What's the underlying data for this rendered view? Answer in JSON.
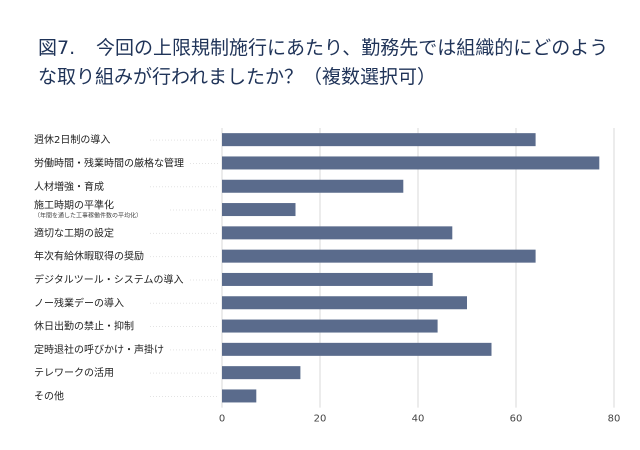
{
  "figure": {
    "label": "図7.",
    "title": "今回の上限規制施行にあたり、勤務先では組織的にどのような取り組みが行われましたか？（複数選択可）"
  },
  "colors": {
    "bar": "#5a6b8c",
    "grid": "#d9d9d9",
    "label": "#222222",
    "title": "#1f3358"
  },
  "chart_data": {
    "type": "bar",
    "orientation": "horizontal",
    "title": "今回の上限規制施行にあたり、勤務先では組織的にどのような取り組みが行われましたか？（複数選択可）",
    "xlabel": "",
    "ylabel": "",
    "xlim": [
      0,
      80
    ],
    "xticks": [
      "0",
      "20",
      "40",
      "60",
      "80"
    ],
    "grid": true,
    "categories": [
      {
        "label": "週休2日制の導入",
        "sub": ""
      },
      {
        "label": "労働時間・残業時間の厳格な管理",
        "sub": ""
      },
      {
        "label": "人材増強・育成",
        "sub": ""
      },
      {
        "label": "施工時期の平準化",
        "sub": "（年間を通した工事稼働件数の平均化）"
      },
      {
        "label": "適切な工期の設定",
        "sub": ""
      },
      {
        "label": "年次有給休暇取得の奨励",
        "sub": ""
      },
      {
        "label": "デジタルツール・システムの導入",
        "sub": ""
      },
      {
        "label": "ノー残業デーの導入",
        "sub": ""
      },
      {
        "label": "休日出勤の禁止・抑制",
        "sub": ""
      },
      {
        "label": "定時退社の呼びかけ・声掛け",
        "sub": ""
      },
      {
        "label": "テレワークの活用",
        "sub": ""
      },
      {
        "label": "その他",
        "sub": ""
      }
    ],
    "values": [
      64,
      77,
      37,
      15,
      47,
      64,
      43,
      50,
      44,
      55,
      16,
      7
    ]
  }
}
